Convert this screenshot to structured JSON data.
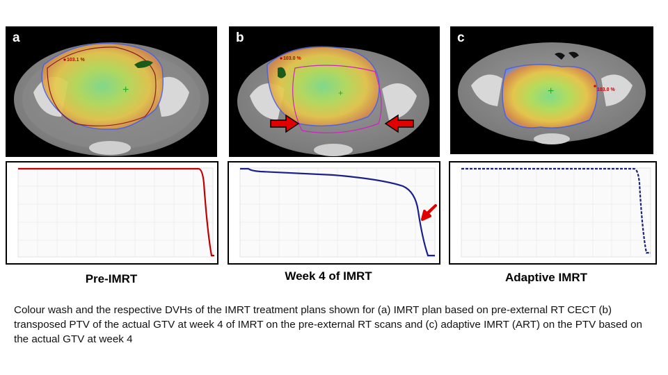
{
  "panels": [
    {
      "letter": "a",
      "dose_label": "103.1 %",
      "plan_label": "Pre-IMRT",
      "dvh_color": "#c00000",
      "dvh_style": "solid"
    },
    {
      "letter": "b",
      "dose_label": "103.0 %",
      "plan_label": "Week 4 of IMRT",
      "dvh_color": "#1a1f8c",
      "dvh_style": "solid"
    },
    {
      "letter": "c",
      "dose_label": "103.0 %",
      "plan_label": "Adaptive IMRT",
      "dvh_color": "#1a237e",
      "dvh_style": "dashed"
    }
  ],
  "caption": "Colour wash and the respective DVHs of the IMRT treatment plans shown for (a) IMRT plan based on pre-external RT CECT (b) transposed PTV of the actual GTV at week 4 of IMRT on the pre-external RT scans and (c) adaptive IMRT (ART) on the PTV based on the actual GTV at week 4",
  "colors": {
    "arrow": "#e00000",
    "ptv_a": "#8b1a1a",
    "ptv_b": "#d020c0",
    "iso": "#22aa22"
  }
}
